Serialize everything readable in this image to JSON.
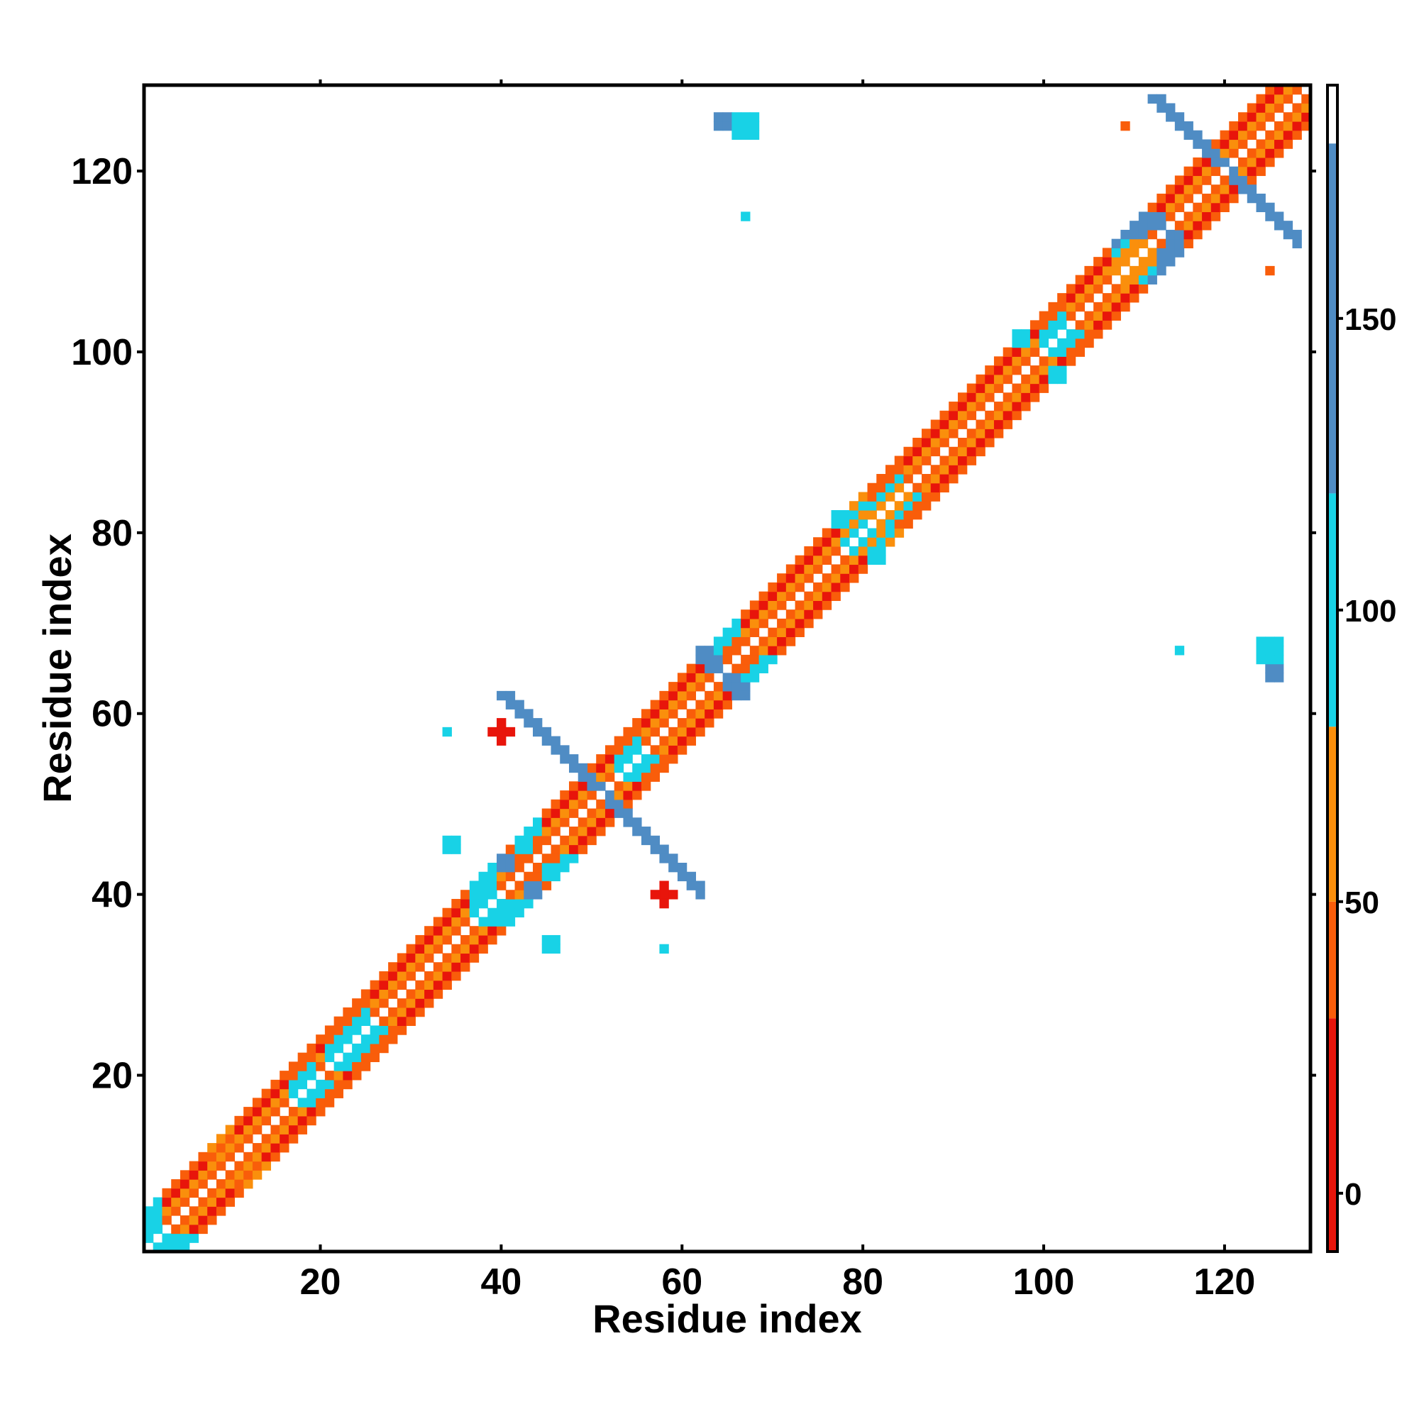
{
  "chart_data": {
    "type": "heatmap",
    "title": "",
    "xlabel": "Residue index",
    "ylabel": "Residue index",
    "xlim": [
      1,
      129
    ],
    "ylim": [
      1,
      129
    ],
    "x_ticks": [
      20,
      40,
      60,
      80,
      100,
      120
    ],
    "y_ticks": [
      20,
      40,
      60,
      80,
      100,
      120
    ],
    "grid": false,
    "symmetric": true,
    "colorbar": {
      "range": [
        -10,
        190
      ],
      "ticks": [
        0,
        50,
        100,
        150
      ],
      "bands": [
        {
          "from": -10,
          "to": 30,
          "color": "#e8150b"
        },
        {
          "from": 30,
          "to": 50,
          "color": "#f95d0a"
        },
        {
          "from": 50,
          "to": 80,
          "color": "#fa8f0c"
        },
        {
          "from": 80,
          "to": 120,
          "color": "#18d2e6"
        },
        {
          "from": 120,
          "to": 180,
          "color": "#4f8cc4"
        },
        {
          "from": 180,
          "to": 190,
          "color": "#ffffff"
        }
      ]
    },
    "diagonal_pattern": {
      "band_values": {
        "1": 45,
        "2": 65,
        "3": 25,
        "4": 40
      },
      "offset_variation": [
        {
          "from": 1,
          "to": 2,
          "values": {
            "1": 90,
            "2": 100,
            "3": 95,
            "4": 105
          }
        },
        {
          "from": 8,
          "to": 10,
          "values": {
            "1": 40,
            "2": 70,
            "3": 35,
            "4": 60
          }
        },
        {
          "from": 17,
          "to": 19,
          "values": {
            "1": 95,
            "2": 100,
            "3": 30,
            "4": 45
          }
        },
        {
          "from": 21,
          "to": 25,
          "values": {
            "1": 100,
            "2": 95,
            "3": 35,
            "4": 40
          }
        },
        {
          "from": 37,
          "to": 39,
          "values": {
            "1": 100,
            "2": 90,
            "3": 95,
            "4": 105
          }
        },
        {
          "from": 42,
          "to": 44,
          "values": {
            "1": 40,
            "2": 35,
            "3": 110,
            "4": 95
          }
        },
        {
          "from": 53,
          "to": 55,
          "values": {
            "1": 100,
            "2": 95,
            "3": 40,
            "4": 35
          }
        },
        {
          "from": 64,
          "to": 66,
          "values": {
            "1": 40,
            "2": 35,
            "3": 105,
            "4": 110
          }
        },
        {
          "from": 78,
          "to": 80,
          "values": {
            "1": 100,
            "2": 60,
            "3": 95,
            "4": 65
          }
        },
        {
          "from": 81,
          "to": 84,
          "values": {
            "1": 60,
            "2": 100,
            "3": 40,
            "4": 35
          }
        },
        {
          "from": 100,
          "to": 102,
          "values": {
            "1": 100,
            "2": 95,
            "3": 35,
            "4": 45
          }
        },
        {
          "from": 108,
          "to": 111,
          "values": {
            "1": 70,
            "2": 60,
            "3": 100,
            "4": 120
          }
        }
      ]
    },
    "blocks": [
      {
        "i": 42,
        "j": 45,
        "size": 2,
        "value": 110
      },
      {
        "i": 38,
        "j": 39,
        "size": 2,
        "value": 100
      },
      {
        "i": 40,
        "j": 43,
        "size": 2,
        "value": 120
      },
      {
        "i": 63,
        "j": 65,
        "size": 2,
        "value": 125
      },
      {
        "i": 66,
        "j": 62,
        "size": 2,
        "value": 125
      },
      {
        "i": 110,
        "j": 113,
        "size": 2,
        "value": 130
      },
      {
        "i": 114,
        "j": 112,
        "size": 2,
        "value": 125
      },
      {
        "i": 101,
        "j": 97,
        "size": 2,
        "value": 100
      },
      {
        "i": 77,
        "j": 81,
        "size": 2,
        "value": 100
      },
      {
        "i": 81,
        "j": 77,
        "size": 2,
        "value": 95
      },
      {
        "i": 58,
        "j": 40,
        "size": 1,
        "value": 5
      },
      {
        "i": 57,
        "j": 40,
        "size": 1,
        "value": 5
      },
      {
        "i": 59,
        "j": 40,
        "size": 1,
        "value": 5
      },
      {
        "i": 58,
        "j": 39,
        "size": 1,
        "value": 5
      },
      {
        "i": 58,
        "j": 41,
        "size": 1,
        "value": 5
      },
      {
        "i": 58,
        "j": 34,
        "size": 1,
        "value": 95
      },
      {
        "i": 45,
        "j": 34,
        "size": 2,
        "value": 125
      },
      {
        "i": 34,
        "j": 45,
        "size": 2,
        "value": 100
      },
      {
        "i": 125,
        "j": 64,
        "size": 2,
        "value": 130
      },
      {
        "i": 124,
        "j": 66,
        "size": 3,
        "value": 95
      },
      {
        "i": 115,
        "j": 67,
        "size": 1,
        "value": 95
      },
      {
        "i": 109,
        "j": 125,
        "size": 1,
        "value": 40
      },
      {
        "i": 125,
        "j": 109,
        "size": 1,
        "value": 40
      }
    ],
    "antidiagonal_arms": [
      {
        "center": 51,
        "from": 46,
        "to": 62,
        "thickness": 2,
        "value": 130
      },
      {
        "center": 120,
        "from": 113,
        "to": 128,
        "thickness": 2,
        "value": 135
      }
    ]
  }
}
